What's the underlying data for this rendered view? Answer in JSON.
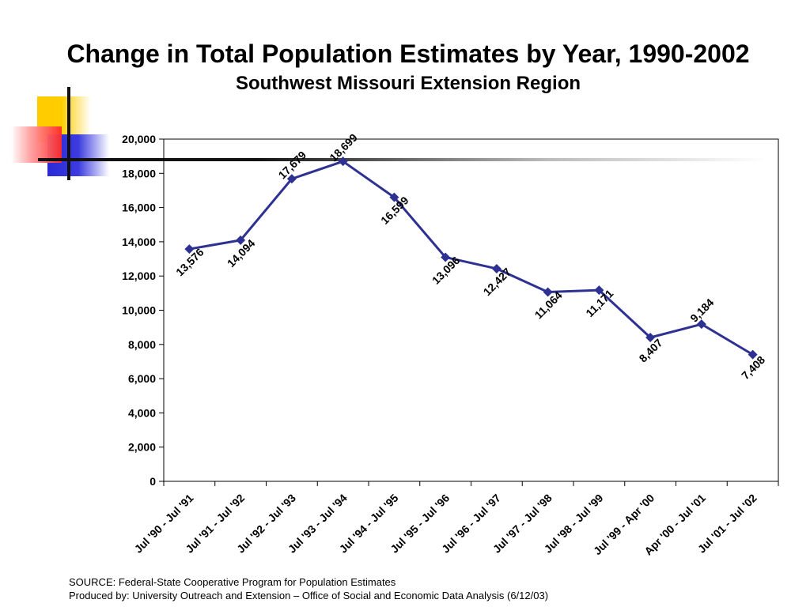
{
  "title": "Change in Total Population Estimates by Year, 1990-2002",
  "subtitle": "Southwest Missouri Extension Region",
  "source_line": "SOURCE:  Federal-State Cooperative Program for Population Estimates",
  "produced_line": "Produced by:  University Outreach and Extension – Office of Social and Economic Data Analysis (6/12/03)",
  "colors": {
    "series": "#2e3192",
    "deco_yellow": "#ffcc00",
    "deco_red": "#ff3333",
    "deco_blue": "#3333cc"
  },
  "chart_data": {
    "type": "line",
    "title": "Change in Total Population Estimates by Year, 1990-2002",
    "subtitle": "Southwest Missouri Extension Region",
    "xlabel": "",
    "ylabel": "",
    "ylim": [
      0,
      20000
    ],
    "yticks": [
      0,
      2000,
      4000,
      6000,
      8000,
      10000,
      12000,
      14000,
      16000,
      18000,
      20000
    ],
    "ytick_labels": [
      "0",
      "2,000",
      "4,000",
      "6,000",
      "8,000",
      "10,000",
      "12,000",
      "14,000",
      "16,000",
      "18,000",
      "20,000"
    ],
    "grid": false,
    "legend": "none",
    "categories": [
      "Jul '90 - Jul '91",
      "Jul '91 - Jul '92",
      "Jul '92 - Jul '93",
      "Jul '93 - Jul '94",
      "Jul '94 - Jul '95",
      "Jul '95 - Jul '96",
      "Jul '96 - Jul '97",
      "Jul '97 - Jul '98",
      "Jul '98 - Jul '99",
      "Jul '99 - Apr '00",
      "Apr '00 - Jul '01",
      "Jul '01 - Jul '02"
    ],
    "values": [
      13576,
      14094,
      17679,
      18699,
      16599,
      13096,
      12427,
      11064,
      11171,
      8407,
      9184,
      7408
    ],
    "data_labels": [
      "13,576",
      "14,094",
      "17,679",
      "18,699",
      "16,599",
      "13,096",
      "12,427",
      "11,064",
      "11,171",
      "8,407",
      "9,184",
      "7,408"
    ],
    "data_label_position": [
      "below",
      "below",
      "above",
      "above",
      "below",
      "below",
      "below",
      "below",
      "below",
      "below",
      "above",
      "below"
    ]
  }
}
